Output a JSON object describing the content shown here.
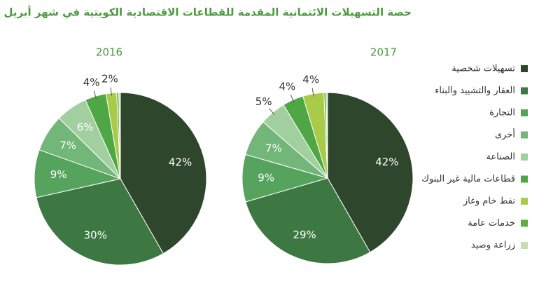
{
  "title": "حصة التسهيلات الائتمانية المقدمة للقطاعات الاقتصادية الكويتية في شهر أبريل",
  "categories": [
    "تسهيلات شخصية",
    "العقار والتشييد والبناء",
    "التجارة",
    "أخرى",
    "الصناعة",
    "قطاعات مالية غير البنوك",
    "نفط خام وغاز",
    "خدمات عامة",
    "زراعة وصيد"
  ],
  "colors": [
    "#2e472c",
    "#3d7842",
    "#56a35d",
    "#72b679",
    "#a2cf9f",
    "#4ea744",
    "#a9cb48",
    "#5fae43",
    "#c6dcaa"
  ],
  "chart_data": [
    {
      "type": "pie",
      "title": "2016",
      "values": [
        42,
        30,
        9,
        7,
        6,
        4,
        2,
        0.4,
        0.3
      ],
      "value_labels": [
        "42%",
        "30%",
        "9%",
        "7%",
        "6%",
        "4%",
        "2%",
        null,
        null
      ]
    },
    {
      "type": "pie",
      "title": "2017",
      "values": [
        42,
        29,
        9,
        7,
        5,
        4,
        4,
        0.4,
        0.3
      ],
      "value_labels": [
        "42%",
        "29%",
        "9%",
        "7%",
        "5%",
        "4%",
        "4%",
        null,
        null
      ]
    }
  ]
}
